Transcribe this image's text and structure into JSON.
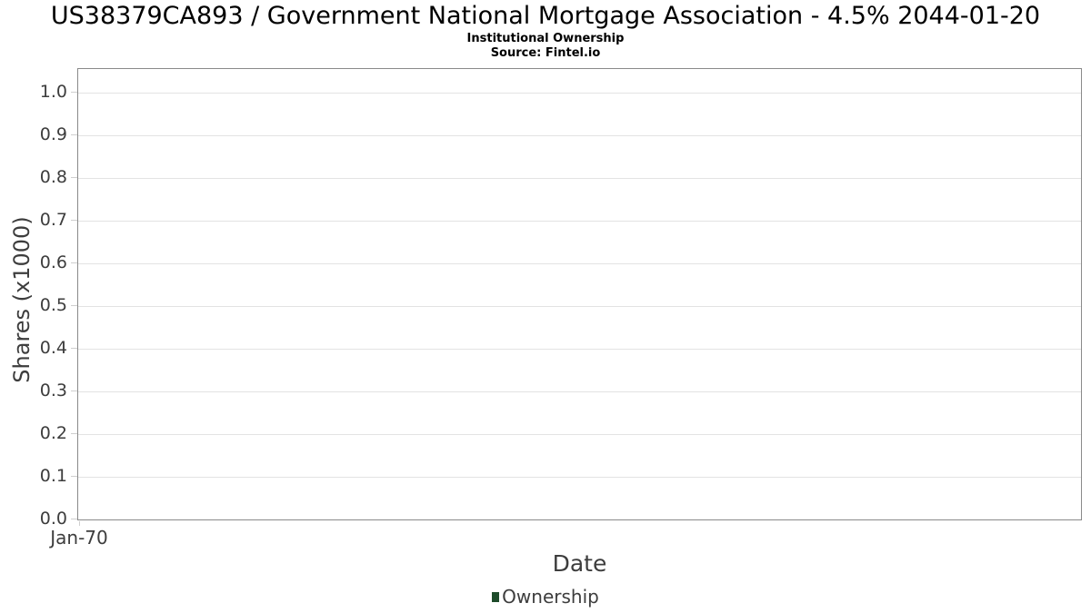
{
  "chart": {
    "title": "US38379CA893 / Government National Mortgage Association - 4.5% 2044-01-20",
    "subtitle": "Institutional Ownership",
    "source": "Source: Fintel.io"
  },
  "chart_data": {
    "type": "line",
    "title": "US38379CA893 / Government National Mortgage Association - 4.5% 2044-01-20",
    "subtitle": "Institutional Ownership",
    "source": "Source: Fintel.io",
    "xlabel": "Date",
    "ylabel": "Shares (x1000)",
    "x": [],
    "xticks": [
      "Jan-70"
    ],
    "yticks": [
      "0.0",
      "0.1",
      "0.2",
      "0.3",
      "0.4",
      "0.5",
      "0.6",
      "0.7",
      "0.8",
      "0.9",
      "1.0"
    ],
    "ylim": [
      0.0,
      1.057
    ],
    "grid": "horizontal",
    "legend_position": "bottom",
    "series": [
      {
        "name": "Ownership",
        "color": "#1d4b2a",
        "values": []
      }
    ],
    "colors": {
      "text": "#3d3d3d",
      "title_text": "#000000",
      "gridline": "#e3e3e3",
      "plot_border": "#8a8a8a",
      "tick_mark": "#cfcfcf",
      "background": "#ffffff",
      "legend_marker": "#1d4b2a"
    }
  }
}
